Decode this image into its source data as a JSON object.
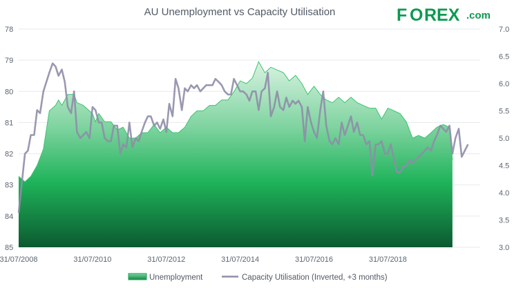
{
  "chart_data": {
    "type": "area",
    "title": "AU Unemployment vs Capacity Utilisation",
    "brand": {
      "main": "F",
      "o": "O",
      "rest": "REX",
      "suffix": ".com"
    },
    "x_ticks": [
      "31/07/2008",
      "31/07/2010",
      "31/07/2012",
      "31/07/2014",
      "31/07/2016",
      "31/07/2018"
    ],
    "left_axis": {
      "ticks": [
        "78",
        "79",
        "80",
        "81",
        "82",
        "83",
        "84",
        "85"
      ],
      "range": [
        78,
        85
      ],
      "inverted": true
    },
    "right_axis": {
      "ticks": [
        "7.0",
        "6.5",
        "6.0",
        "5.5",
        "5.0",
        "4.5",
        "4.0",
        "3.5",
        "3.0"
      ],
      "range": [
        3.0,
        7.0
      ]
    },
    "x_range": [
      2008.0,
      2020.5
    ],
    "series": [
      {
        "name": "Unemployment",
        "axis": "right",
        "color": "#1fb35a",
        "points": [
          [
            2008.0,
            4.3
          ],
          [
            2008.17,
            4.2
          ],
          [
            2008.33,
            4.3
          ],
          [
            2008.5,
            4.5
          ],
          [
            2008.67,
            4.8
          ],
          [
            2008.83,
            5.5
          ],
          [
            2009.0,
            5.6
          ],
          [
            2009.08,
            5.7
          ],
          [
            2009.17,
            5.6
          ],
          [
            2009.33,
            5.8
          ],
          [
            2009.5,
            5.8
          ],
          [
            2009.58,
            5.65
          ],
          [
            2009.75,
            5.6
          ],
          [
            2010.0,
            5.45
          ],
          [
            2010.08,
            5.3
          ],
          [
            2010.17,
            5.45
          ],
          [
            2010.33,
            5.3
          ],
          [
            2010.5,
            5.3
          ],
          [
            2010.67,
            5.15
          ],
          [
            2010.83,
            5.2
          ],
          [
            2011.0,
            5.0
          ],
          [
            2011.17,
            5.0
          ],
          [
            2011.33,
            5.1
          ],
          [
            2011.5,
            5.1
          ],
          [
            2011.67,
            5.25
          ],
          [
            2011.83,
            5.1
          ],
          [
            2012.0,
            5.2
          ],
          [
            2012.17,
            5.1
          ],
          [
            2012.33,
            5.1
          ],
          [
            2012.5,
            5.2
          ],
          [
            2012.67,
            5.4
          ],
          [
            2012.83,
            5.5
          ],
          [
            2013.0,
            5.5
          ],
          [
            2013.17,
            5.6
          ],
          [
            2013.33,
            5.6
          ],
          [
            2013.5,
            5.7
          ],
          [
            2013.67,
            5.7
          ],
          [
            2013.83,
            5.85
          ],
          [
            2014.0,
            6.05
          ],
          [
            2014.17,
            6.0
          ],
          [
            2014.33,
            6.1
          ],
          [
            2014.5,
            6.4
          ],
          [
            2014.67,
            6.2
          ],
          [
            2014.83,
            6.3
          ],
          [
            2015.0,
            6.25
          ],
          [
            2015.17,
            6.2
          ],
          [
            2015.33,
            6.05
          ],
          [
            2015.5,
            6.15
          ],
          [
            2015.67,
            6.0
          ],
          [
            2015.83,
            5.8
          ],
          [
            2016.0,
            5.95
          ],
          [
            2016.17,
            5.8
          ],
          [
            2016.33,
            5.7
          ],
          [
            2016.5,
            5.65
          ],
          [
            2016.67,
            5.75
          ],
          [
            2016.83,
            5.65
          ],
          [
            2017.0,
            5.75
          ],
          [
            2017.17,
            5.65
          ],
          [
            2017.33,
            5.6
          ],
          [
            2017.5,
            5.55
          ],
          [
            2017.67,
            5.55
          ],
          [
            2017.83,
            5.35
          ],
          [
            2018.0,
            5.55
          ],
          [
            2018.17,
            5.5
          ],
          [
            2018.33,
            5.45
          ],
          [
            2018.5,
            5.3
          ],
          [
            2018.67,
            5.0
          ],
          [
            2018.83,
            5.05
          ],
          [
            2019.0,
            5.0
          ],
          [
            2019.17,
            5.1
          ],
          [
            2019.33,
            5.2
          ],
          [
            2019.5,
            5.25
          ],
          [
            2019.67,
            5.2
          ],
          [
            2019.75,
            4.6
          ]
        ]
      },
      {
        "name": "Capacity Utilisation (Inverted, +3 months)",
        "axis": "left",
        "color": "#9695b0",
        "points": [
          [
            2008.0,
            83.9
          ],
          [
            2008.08,
            83.0
          ],
          [
            2008.17,
            82.0
          ],
          [
            2008.25,
            81.9
          ],
          [
            2008.33,
            81.4
          ],
          [
            2008.42,
            81.4
          ],
          [
            2008.5,
            80.6
          ],
          [
            2008.58,
            80.7
          ],
          [
            2008.67,
            80.0
          ],
          [
            2008.83,
            79.4
          ],
          [
            2008.92,
            79.1
          ],
          [
            2009.0,
            79.2
          ],
          [
            2009.08,
            79.5
          ],
          [
            2009.17,
            79.3
          ],
          [
            2009.25,
            79.7
          ],
          [
            2009.33,
            80.5
          ],
          [
            2009.42,
            80.7
          ],
          [
            2009.5,
            80.0
          ],
          [
            2009.58,
            81.3
          ],
          [
            2009.67,
            81.5
          ],
          [
            2009.75,
            81.4
          ],
          [
            2009.83,
            81.3
          ],
          [
            2009.92,
            81.5
          ],
          [
            2010.0,
            80.5
          ],
          [
            2010.08,
            80.6
          ],
          [
            2010.17,
            81.0
          ],
          [
            2010.25,
            81.0
          ],
          [
            2010.33,
            81.5
          ],
          [
            2010.42,
            81.6
          ],
          [
            2010.5,
            81.6
          ],
          [
            2010.58,
            81.1
          ],
          [
            2010.67,
            81.1
          ],
          [
            2010.75,
            82.0
          ],
          [
            2010.83,
            81.7
          ],
          [
            2010.92,
            81.8
          ],
          [
            2011.0,
            81.0
          ],
          [
            2011.08,
            81.8
          ],
          [
            2011.17,
            81.5
          ],
          [
            2011.25,
            81.6
          ],
          [
            2011.33,
            81.3
          ],
          [
            2011.42,
            81.0
          ],
          [
            2011.5,
            80.8
          ],
          [
            2011.58,
            80.8
          ],
          [
            2011.67,
            81.1
          ],
          [
            2011.75,
            81.0
          ],
          [
            2011.83,
            81.2
          ],
          [
            2011.92,
            80.9
          ],
          [
            2012.0,
            81.3
          ],
          [
            2012.08,
            80.4
          ],
          [
            2012.17,
            80.8
          ],
          [
            2012.25,
            79.6
          ],
          [
            2012.33,
            79.9
          ],
          [
            2012.42,
            80.6
          ],
          [
            2012.5,
            79.9
          ],
          [
            2012.58,
            80.0
          ],
          [
            2012.67,
            79.8
          ],
          [
            2012.75,
            79.9
          ],
          [
            2012.83,
            79.8
          ],
          [
            2012.92,
            80.0
          ],
          [
            2013.0,
            79.9
          ],
          [
            2013.08,
            79.8
          ],
          [
            2013.17,
            79.8
          ],
          [
            2013.25,
            79.8
          ],
          [
            2013.33,
            79.6
          ],
          [
            2013.42,
            79.7
          ],
          [
            2013.5,
            79.8
          ],
          [
            2013.58,
            80.0
          ],
          [
            2013.67,
            80.1
          ],
          [
            2013.75,
            80.1
          ],
          [
            2013.83,
            79.6
          ],
          [
            2014.0,
            80.0
          ],
          [
            2014.08,
            80.0
          ],
          [
            2014.17,
            80.1
          ],
          [
            2014.25,
            80.3
          ],
          [
            2014.33,
            80.0
          ],
          [
            2014.42,
            80.0
          ],
          [
            2014.5,
            80.6
          ],
          [
            2014.58,
            80.0
          ],
          [
            2014.67,
            79.9
          ],
          [
            2014.75,
            79.4
          ],
          [
            2014.83,
            80.8
          ],
          [
            2014.92,
            80.5
          ],
          [
            2015.0,
            80.0
          ],
          [
            2015.08,
            80.5
          ],
          [
            2015.17,
            80.6
          ],
          [
            2015.25,
            80.2
          ],
          [
            2015.33,
            80.5
          ],
          [
            2015.42,
            80.3
          ],
          [
            2015.5,
            80.4
          ],
          [
            2015.58,
            80.3
          ],
          [
            2015.67,
            80.5
          ],
          [
            2015.75,
            81.6
          ],
          [
            2015.83,
            80.5
          ],
          [
            2015.92,
            81.0
          ],
          [
            2016.0,
            81.3
          ],
          [
            2016.08,
            81.5
          ],
          [
            2016.17,
            80.6
          ],
          [
            2016.25,
            80.0
          ],
          [
            2016.33,
            81.1
          ],
          [
            2016.42,
            81.6
          ],
          [
            2016.5,
            81.7
          ],
          [
            2016.58,
            81.5
          ],
          [
            2016.67,
            81.7
          ],
          [
            2016.75,
            81.0
          ],
          [
            2016.83,
            81.4
          ],
          [
            2016.92,
            81.1
          ],
          [
            2017.0,
            80.8
          ],
          [
            2017.08,
            81.3
          ],
          [
            2017.17,
            81.0
          ],
          [
            2017.25,
            81.4
          ],
          [
            2017.33,
            81.4
          ],
          [
            2017.42,
            81.7
          ],
          [
            2017.5,
            81.6
          ],
          [
            2017.58,
            82.7
          ],
          [
            2017.67,
            81.7
          ],
          [
            2017.75,
            81.7
          ],
          [
            2017.83,
            81.6
          ],
          [
            2017.92,
            82.0
          ],
          [
            2018.0,
            82.0
          ],
          [
            2018.08,
            81.7
          ],
          [
            2018.17,
            82.2
          ],
          [
            2018.25,
            82.6
          ],
          [
            2018.33,
            82.6
          ],
          [
            2018.42,
            82.4
          ],
          [
            2018.5,
            82.4
          ],
          [
            2018.58,
            82.2
          ],
          [
            2018.67,
            82.3
          ],
          [
            2018.75,
            82.2
          ],
          [
            2018.83,
            82.1
          ],
          [
            2018.92,
            82.0
          ],
          [
            2019.0,
            81.9
          ],
          [
            2019.08,
            81.8
          ],
          [
            2019.17,
            81.9
          ],
          [
            2019.25,
            81.6
          ],
          [
            2019.33,
            81.4
          ],
          [
            2019.42,
            81.1
          ],
          [
            2019.5,
            81.2
          ],
          [
            2019.58,
            81.3
          ],
          [
            2019.67,
            81.1
          ],
          [
            2019.75,
            82.0
          ],
          [
            2019.83,
            81.5
          ],
          [
            2019.92,
            81.2
          ],
          [
            2020.0,
            82.1
          ],
          [
            2020.17,
            81.7
          ]
        ]
      }
    ],
    "legend": [
      {
        "label": "Unemployment",
        "kind": "area"
      },
      {
        "label": "Capacity Utilisation (Inverted, +3 months)",
        "kind": "line"
      }
    ],
    "legend_position": "bottom-center"
  }
}
